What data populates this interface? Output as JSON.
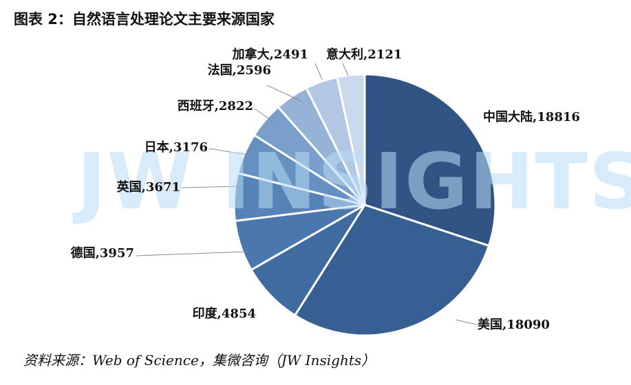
{
  "title": "图表 2：自然语言处理论文主要来源国家",
  "source": "资料来源：Web of Science，集微咨询（JW Insights）",
  "watermark": "JW INSIGHTS",
  "chart_data": {
    "type": "pie",
    "title": "图表 2：自然语言处理论文主要来源国家",
    "start": "12 o'clock, clockwise",
    "slices": [
      {
        "label": "中国大陆",
        "value": 18816,
        "color": "#2f5483"
      },
      {
        "label": "美国",
        "value": 18090,
        "color": "#375f92"
      },
      {
        "label": "印度",
        "value": 4854,
        "color": "#3f6ba1"
      },
      {
        "label": "德国",
        "value": 3957,
        "color": "#4a77ad"
      },
      {
        "label": "英国",
        "value": 3671,
        "color": "#5583b7"
      },
      {
        "label": "日本",
        "value": 3176,
        "color": "#6690c0"
      },
      {
        "label": "西班牙",
        "value": 2822,
        "color": "#7a9fcb"
      },
      {
        "label": "法国",
        "value": 2596,
        "color": "#95b3d6"
      },
      {
        "label": "加拿大",
        "value": 2491,
        "color": "#b1c7e2"
      },
      {
        "label": "意大利",
        "value": 2121,
        "color": "#cbd9ec"
      }
    ]
  }
}
